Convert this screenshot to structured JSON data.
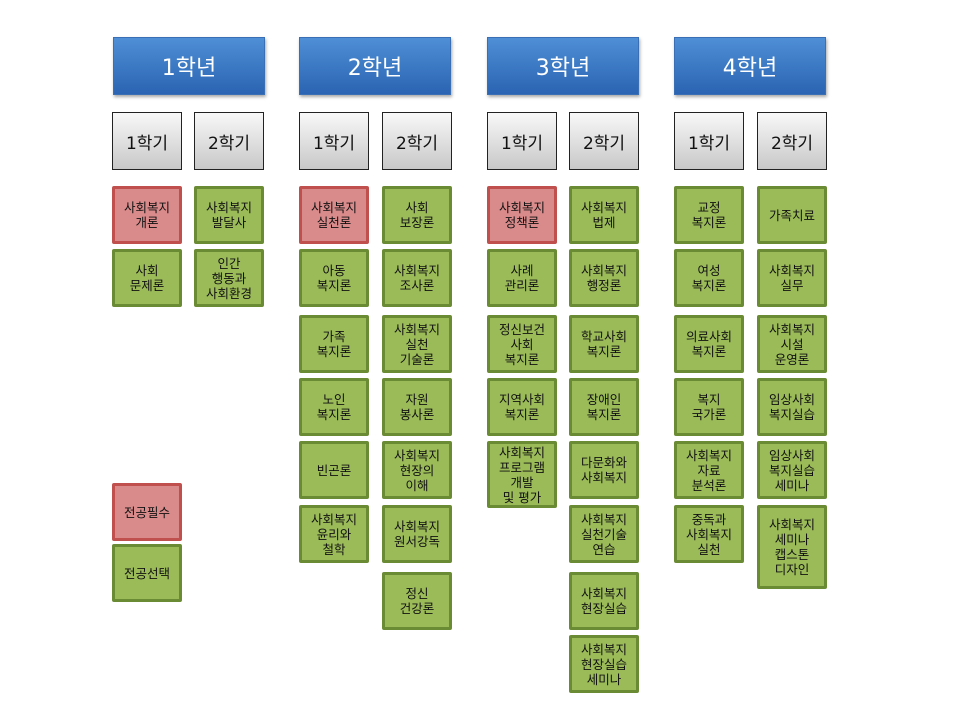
{
  "colors": {
    "year_header": "#2f6fbf",
    "required": "#d98b8b",
    "elective": "#9bbb59"
  },
  "years": [
    {
      "label": "1학년",
      "semesters": [
        {
          "label": "1학기",
          "courses": [
            {
              "name": "사회복지\n개론",
              "type": "required"
            },
            {
              "name": "사회\n문제론",
              "type": "elective"
            }
          ]
        },
        {
          "label": "2학기",
          "courses": [
            {
              "name": "사회복지\n발달사",
              "type": "elective"
            },
            {
              "name": "인간\n행동과\n사회환경",
              "type": "elective"
            }
          ]
        }
      ]
    },
    {
      "label": "2학년",
      "semesters": [
        {
          "label": "1학기",
          "courses": [
            {
              "name": "사회복지\n실천론",
              "type": "required"
            },
            {
              "name": "아동\n복지론",
              "type": "elective"
            },
            {
              "name": "가족\n복지론",
              "type": "elective"
            },
            {
              "name": "노인\n복지론",
              "type": "elective"
            },
            {
              "name": "빈곤론",
              "type": "elective"
            },
            {
              "name": "사회복지\n윤리와\n철학",
              "type": "elective"
            }
          ]
        },
        {
          "label": "2학기",
          "courses": [
            {
              "name": "사회\n보장론",
              "type": "elective"
            },
            {
              "name": "사회복지\n조사론",
              "type": "elective"
            },
            {
              "name": "사회복지\n실천\n기술론",
              "type": "elective"
            },
            {
              "name": "자원\n봉사론",
              "type": "elective"
            },
            {
              "name": "사회복지\n현장의\n이해",
              "type": "elective"
            },
            {
              "name": "사회복지\n원서강독",
              "type": "elective"
            },
            {
              "name": "정신\n건강론",
              "type": "elective"
            }
          ]
        }
      ]
    },
    {
      "label": "3학년",
      "semesters": [
        {
          "label": "1학기",
          "courses": [
            {
              "name": "사회복지\n정책론",
              "type": "required"
            },
            {
              "name": "사례\n관리론",
              "type": "elective"
            },
            {
              "name": "정신보건\n사회\n복지론",
              "type": "elective"
            },
            {
              "name": "지역사회\n복지론",
              "type": "elective"
            },
            {
              "name": "사회복지\n프로그램\n개발\n및 평가",
              "type": "elective"
            }
          ]
        },
        {
          "label": "2학기",
          "courses": [
            {
              "name": "사회복지\n법제",
              "type": "elective"
            },
            {
              "name": "사회복지\n행정론",
              "type": "elective"
            },
            {
              "name": "학교사회\n복지론",
              "type": "elective"
            },
            {
              "name": "장애인\n복지론",
              "type": "elective"
            },
            {
              "name": "다문화와\n사회복지",
              "type": "elective"
            },
            {
              "name": "사회복지\n실천기술\n연습",
              "type": "elective"
            },
            {
              "name": "사회복지\n현장실습",
              "type": "elective"
            },
            {
              "name": "사회복지\n현장실습\n세미나",
              "type": "elective"
            }
          ]
        }
      ]
    },
    {
      "label": "4학년",
      "semesters": [
        {
          "label": "1학기",
          "courses": [
            {
              "name": "교정\n복지론",
              "type": "elective"
            },
            {
              "name": "여성\n복지론",
              "type": "elective"
            },
            {
              "name": "의료사회\n복지론",
              "type": "elective"
            },
            {
              "name": "복지\n국가론",
              "type": "elective"
            },
            {
              "name": "사회복지\n자료\n분석론",
              "type": "elective"
            },
            {
              "name": "중독과\n사회복지\n실천",
              "type": "elective"
            }
          ]
        },
        {
          "label": "2학기",
          "courses": [
            {
              "name": "가족치료",
              "type": "elective"
            },
            {
              "name": "사회복지\n실무",
              "type": "elective"
            },
            {
              "name": "사회복지\n시설\n운영론",
              "type": "elective"
            },
            {
              "name": "임상사회\n복지실습",
              "type": "elective"
            },
            {
              "name": "임상사회\n복지실습\n세미나",
              "type": "elective"
            },
            {
              "name": "사회복지\n세미나\n캡스톤\n디자인",
              "type": "elective"
            }
          ]
        }
      ]
    }
  ],
  "legend": {
    "required": "전공필수",
    "elective": "전공선택"
  }
}
